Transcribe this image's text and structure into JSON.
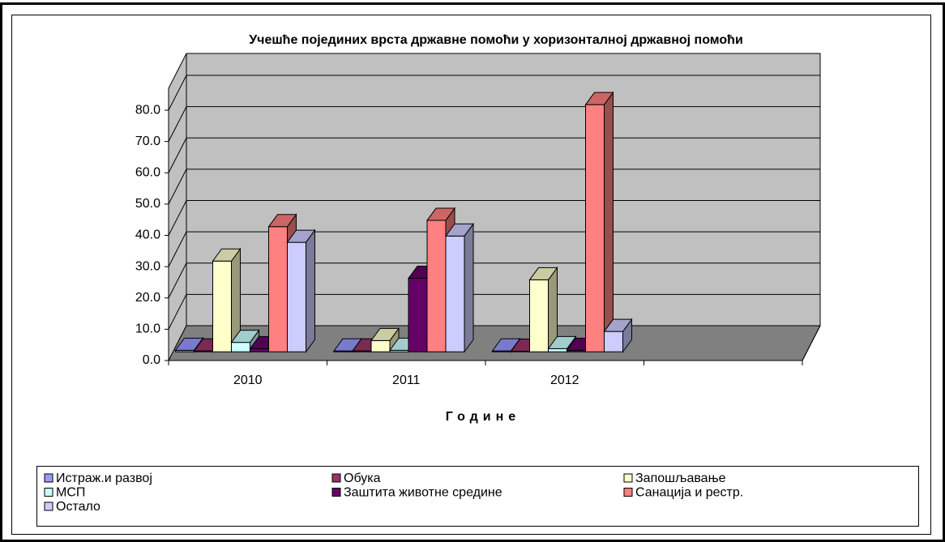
{
  "chart_data": {
    "type": "bar3d",
    "title": "Учешће појединих врста државне помоћи у хоризонталној државној помоћи",
    "x_label": "Године",
    "categories": [
      "2010",
      "2011",
      "2012"
    ],
    "series": [
      {
        "name": "Истраж.и развој",
        "color": "#9999ff",
        "values": [
          0.5,
          0.3,
          0.3
        ]
      },
      {
        "name": "Обука",
        "color": "#993366",
        "values": [
          0.3,
          0.3,
          0.2
        ]
      },
      {
        "name": "Запошљавање",
        "color": "#ffffcc",
        "values": [
          29,
          3.6,
          23
        ]
      },
      {
        "name": "МСП",
        "color": "#ccffff",
        "values": [
          3,
          0.5,
          1
        ]
      },
      {
        "name": "Заштита животне средине",
        "color": "#660066",
        "values": [
          1,
          23.5,
          0.5
        ]
      },
      {
        "name": "Санација и рестр.",
        "color": "#ff8080",
        "values": [
          40,
          42,
          79
        ]
      },
      {
        "name": "Остало",
        "color": "#ccccff",
        "values": [
          35,
          37,
          6.5
        ]
      }
    ],
    "ylim": [
      0,
      87
    ],
    "yticks": [
      {
        "value": 0,
        "label": "0.0"
      },
      {
        "value": 10,
        "label": "10.0"
      },
      {
        "value": 20,
        "label": "20.0"
      },
      {
        "value": 30,
        "label": "30.0"
      },
      {
        "value": 40,
        "label": "40.0"
      },
      {
        "value": 50,
        "label": "50.0"
      },
      {
        "value": 60,
        "label": "60.0"
      },
      {
        "value": 70,
        "label": "70.0"
      },
      {
        "value": 80,
        "label": "80.0"
      }
    ],
    "grid": true
  }
}
